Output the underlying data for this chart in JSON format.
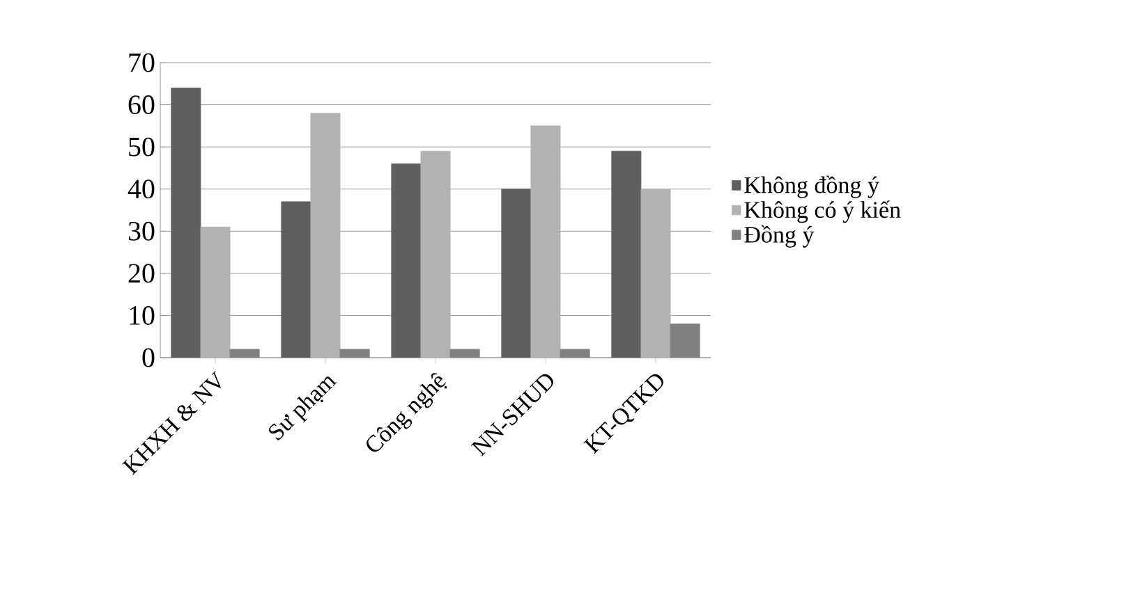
{
  "chart_data": {
    "type": "bar",
    "categories": [
      "KHXH & NV",
      "Sư phạm",
      "Công nghệ",
      "NN-SHUD",
      "KT-QTKD"
    ],
    "series": [
      {
        "name": "Không đồng ý",
        "color": "#5f5f5f",
        "values": [
          64,
          37,
          46,
          40,
          49
        ]
      },
      {
        "name": "Không có ý kiến",
        "color": "#b2b2b2",
        "values": [
          31,
          58,
          49,
          55,
          40
        ]
      },
      {
        "name": "Đồng ý",
        "color": "#808080",
        "values": [
          2,
          2,
          2,
          2,
          8
        ]
      }
    ],
    "ylim": [
      0,
      70
    ],
    "yticks": [
      0,
      10,
      20,
      30,
      40,
      50,
      60,
      70
    ],
    "grid": "y",
    "legend": "right"
  }
}
